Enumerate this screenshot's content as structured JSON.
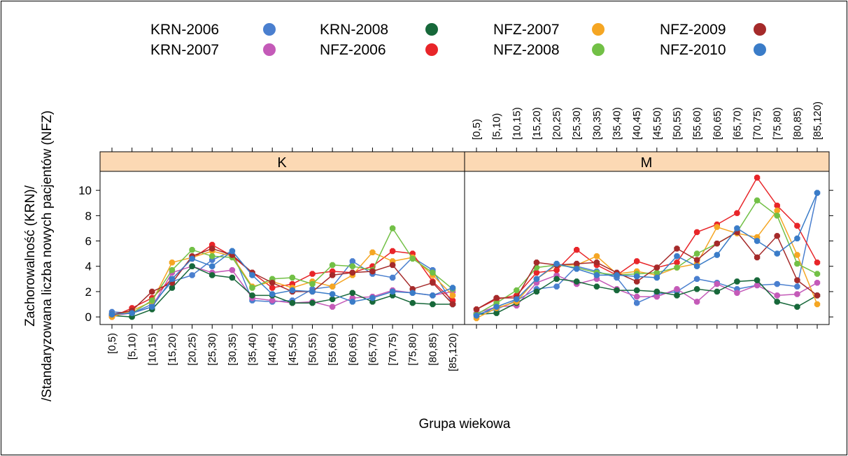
{
  "chart_data": {
    "type": "line",
    "ylabel_line1": "Zachorowalność (KRN)/",
    "ylabel_line2": "/Standaryzowana liczba nowych pacjentów (NFZ)",
    "xlabel": "Grupa wiekowa",
    "categories": [
      "[0,5)",
      "[5,10)",
      "[10,15)",
      "[15,20)",
      "[20,25)",
      "[25,30)",
      "[30,35)",
      "[35,40)",
      "[40,45)",
      "[45,50)",
      "[50,55)",
      "[55,60)",
      "[60,65)",
      "[65,70)",
      "[70,75)",
      "[75,80)",
      "[80,85)",
      "[85,120)"
    ],
    "yticks": [
      0,
      2,
      4,
      6,
      8,
      10
    ],
    "ylim": [
      -0.6,
      11.5
    ],
    "series_styles": [
      {
        "name": "KRN-2006",
        "color": "#4a7fcf"
      },
      {
        "name": "KRN-2007",
        "color": "#c45ab8"
      },
      {
        "name": "KRN-2008",
        "color": "#17683a"
      },
      {
        "name": "NFZ-2006",
        "color": "#e82529"
      },
      {
        "name": "NFZ-2007",
        "color": "#f5a623"
      },
      {
        "name": "NFZ-2008",
        "color": "#72c046"
      },
      {
        "name": "NFZ-2009",
        "color": "#a52a2a"
      },
      {
        "name": "NFZ-2010",
        "color": "#3a7cc8"
      }
    ],
    "panels": [
      {
        "name": "K",
        "series": [
          {
            "name": "KRN-2006",
            "values": [
              0.4,
              0.3,
              1.0,
              2.8,
              3.3,
              4.5,
              5.2,
              1.3,
              1.2,
              1.3,
              2.2,
              2.4,
              4.4,
              3.4,
              3.1,
              4.7,
              3.7,
              1.0
            ]
          },
          {
            "name": "KRN-2007",
            "values": [
              0.1,
              0.3,
              0.8,
              3.5,
              4.0,
              3.5,
              3.7,
              1.5,
              1.3,
              1.1,
              1.2,
              0.8,
              1.5,
              1.6,
              2.1,
              1.9,
              1.7,
              2.0
            ]
          },
          {
            "name": "KRN-2008",
            "values": [
              0.1,
              0.0,
              0.6,
              2.3,
              4.0,
              3.3,
              3.1,
              1.7,
              1.7,
              1.1,
              1.1,
              1.4,
              1.9,
              1.2,
              1.7,
              1.1,
              1.0,
              1.0
            ]
          },
          {
            "name": "NFZ-2006",
            "values": [
              0.0,
              0.7,
              1.5,
              3.0,
              4.6,
              5.7,
              4.8,
              3.5,
              2.3,
              2.6,
              3.4,
              3.6,
              3.5,
              4.0,
              5.2,
              5.0,
              2.8,
              1.3
            ]
          },
          {
            "name": "NFZ-2007",
            "values": [
              0.0,
              0.5,
              1.2,
              4.3,
              4.7,
              5.2,
              4.8,
              2.4,
              2.8,
              2.3,
              2.8,
              2.4,
              3.3,
              5.1,
              4.4,
              4.7,
              3.3,
              1.7
            ]
          },
          {
            "name": "NFZ-2008",
            "values": [
              0.2,
              0.3,
              1.3,
              3.7,
              5.3,
              4.8,
              4.7,
              2.3,
              3.0,
              3.1,
              2.6,
              4.1,
              4.0,
              3.7,
              7.0,
              4.6,
              3.5,
              2.2
            ]
          },
          {
            "name": "NFZ-2009",
            "values": [
              0.2,
              0.5,
              2.0,
              2.7,
              4.8,
              5.4,
              4.9,
              3.5,
              2.7,
              2.0,
              2.0,
              3.3,
              3.5,
              3.6,
              4.1,
              2.2,
              2.7,
              1.0
            ]
          },
          {
            "name": "NFZ-2010",
            "values": [
              0.2,
              0.3,
              0.8,
              3.0,
              4.6,
              4.0,
              5.2,
              3.3,
              1.8,
              2.1,
              2.0,
              1.8,
              1.2,
              1.5,
              2.0,
              1.9,
              1.7,
              2.3
            ]
          }
        ]
      },
      {
        "name": "M",
        "series": [
          {
            "name": "KRN-2006",
            "values": [
              0.2,
              0.6,
              1.3,
              2.2,
              2.4,
              4.0,
              3.6,
              3.1,
              1.1,
              1.8,
              2.0,
              3.0,
              2.7,
              2.2,
              2.5,
              2.6,
              2.4,
              9.8
            ]
          },
          {
            "name": "KRN-2007",
            "values": [
              0.3,
              0.8,
              0.9,
              2.7,
              3.3,
              2.6,
              3.0,
              2.2,
              1.6,
              1.6,
              2.2,
              1.2,
              2.6,
              1.9,
              2.5,
              1.7,
              1.8,
              2.7
            ]
          },
          {
            "name": "KRN-2008",
            "values": [
              0.2,
              0.3,
              1.1,
              2.0,
              3.0,
              2.8,
              2.4,
              2.1,
              2.1,
              2.0,
              1.7,
              2.2,
              2.0,
              2.8,
              2.9,
              1.2,
              0.8,
              1.7
            ]
          },
          {
            "name": "NFZ-2006",
            "values": [
              0.6,
              1.4,
              1.7,
              3.5,
              3.7,
              5.3,
              4.1,
              3.3,
              4.4,
              3.9,
              4.3,
              6.7,
              7.3,
              8.2,
              11.0,
              8.8,
              7.2,
              4.3
            ]
          },
          {
            "name": "NFZ-2007",
            "values": [
              -0.1,
              0.7,
              1.2,
              3.0,
              4.1,
              4.1,
              4.8,
              3.4,
              3.6,
              3.3,
              3.9,
              4.2,
              7.1,
              6.6,
              6.3,
              8.4,
              4.9,
              1.0
            ]
          },
          {
            "name": "NFZ-2008",
            "values": [
              0.2,
              1.1,
              2.1,
              3.9,
              4.1,
              3.9,
              3.5,
              3.3,
              3.4,
              3.5,
              3.9,
              5.0,
              5.8,
              6.7,
              9.2,
              8.0,
              4.2,
              3.4
            ]
          },
          {
            "name": "NFZ-2009",
            "values": [
              0.6,
              1.5,
              1.5,
              4.3,
              4.1,
              4.2,
              4.3,
              3.5,
              2.8,
              3.9,
              5.4,
              4.5,
              5.8,
              6.7,
              4.7,
              6.4,
              2.9,
              1.7
            ]
          },
          {
            "name": "NFZ-2010",
            "values": [
              0.1,
              0.8,
              1.4,
              3.0,
              4.2,
              3.8,
              3.3,
              3.3,
              3.2,
              3.1,
              4.8,
              4.0,
              4.9,
              7.0,
              6.0,
              5.0,
              6.2,
              9.8
            ]
          }
        ]
      }
    ]
  },
  "legend": {
    "items": [
      {
        "label": "KRN-2006",
        "color": "#4a7fcf"
      },
      {
        "label": "KRN-2007",
        "color": "#c45ab8"
      },
      {
        "label": "KRN-2008",
        "color": "#17683a"
      },
      {
        "label": "NFZ-2006",
        "color": "#e82529"
      },
      {
        "label": "NFZ-2007",
        "color": "#f5a623"
      },
      {
        "label": "NFZ-2008",
        "color": "#72c046"
      },
      {
        "label": "NFZ-2009",
        "color": "#a52a2a"
      },
      {
        "label": "NFZ-2010",
        "color": "#3a7cc8"
      }
    ]
  },
  "strip_color": "#fcd9b4"
}
